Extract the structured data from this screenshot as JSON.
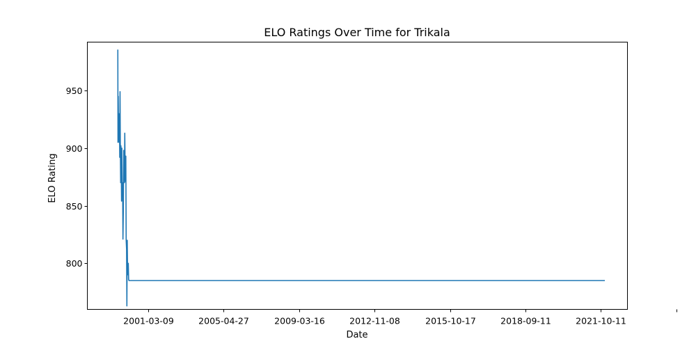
{
  "chart_data": {
    "type": "line",
    "title": "ELO Ratings Over Time for Trikala",
    "xlabel": "Date",
    "ylabel": "ELO Rating",
    "x_tick_labels": [
      "2001-03-09",
      "2005-04-27",
      "2009-03-16",
      "2012-11-08",
      "2015-10-17",
      "2018-09-11",
      "2021-10-11",
      ""
    ],
    "y_ticks": [
      800,
      850,
      900,
      950
    ],
    "xlim": [
      "1997-11-15",
      "2027-04-10"
    ],
    "ylim": [
      760,
      992
    ],
    "grid": false,
    "legend": "none",
    "series": [
      {
        "color": "#1f77b4",
        "x": [
          "1999-07-14",
          "1999-07-17",
          "1999-07-22",
          "1999-07-28",
          "1999-08-03",
          "1999-08-09",
          "1999-08-15",
          "1999-08-21",
          "1999-08-27",
          "1999-09-02",
          "1999-09-08",
          "1999-09-14",
          "1999-09-20",
          "1999-09-26",
          "1999-10-02",
          "1999-10-10",
          "1999-10-17",
          "1999-10-24",
          "1999-11-01",
          "1999-11-08",
          "1999-11-15",
          "1999-11-22",
          "1999-11-29",
          "1999-12-06",
          "1999-12-13",
          "1999-12-20",
          "1999-12-27",
          "2000-01-04",
          "2000-01-10",
          "2000-01-17",
          "2000-01-24",
          "2000-01-31",
          "2000-02-07",
          "2000-02-14",
          "2000-02-21",
          "2000-02-28",
          "2000-03-06",
          "2000-03-13",
          "2000-03-20",
          "2000-03-27",
          "2000-04-03",
          "2000-04-10",
          "2000-04-17",
          "2000-04-24",
          "2000-05-01",
          "2000-05-08",
          "2000-05-15",
          "2000-05-22",
          "2000-05-29",
          "2000-06-05",
          "2000-06-12",
          "2000-06-19",
          "2000-06-26",
          "2000-07-03",
          "2000-07-10",
          "2000-07-17",
          "2000-07-24",
          "2026-01-05"
        ],
        "y": [
          985,
          905,
          945,
          912,
          930,
          905,
          928,
          892,
          949,
          900,
          870,
          902,
          885,
          854,
          900,
          860,
          870,
          821,
          846,
          898,
          888,
          870,
          913,
          884,
          871,
          893,
          820,
          812,
          763,
          820,
          793,
          790,
          800,
          786,
          785,
          785,
          785,
          785,
          785,
          785,
          785,
          785,
          785,
          785,
          785,
          785,
          785,
          785,
          785,
          785,
          785,
          785,
          785,
          785,
          785,
          785,
          785,
          785
        ]
      }
    ]
  }
}
